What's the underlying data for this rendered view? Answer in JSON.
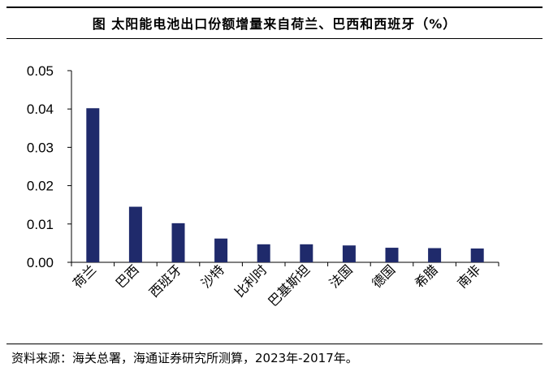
{
  "header": {
    "title": "图  太阳能电池出口份额增量来自荷兰、巴西和西班牙（%）"
  },
  "footer": {
    "source": "资料来源：海关总署，海通证券研究所测算，2023年-2017年。"
  },
  "colors": {
    "bar": "#1f2a6b",
    "axis": "#000000",
    "text": "#000000"
  },
  "chart_data": {
    "type": "bar",
    "title": "图  太阳能电池出口份额增量来自荷兰、巴西和西班牙（%）",
    "xlabel": "",
    "ylabel": "",
    "categories": [
      "荷兰",
      "巴西",
      "西班牙",
      "沙特",
      "比利时",
      "巴基斯坦",
      "法国",
      "德国",
      "希腊",
      "南非"
    ],
    "values": [
      0.0402,
      0.0145,
      0.0102,
      0.0062,
      0.0047,
      0.0047,
      0.0044,
      0.0038,
      0.0037,
      0.0036
    ],
    "ylim": [
      0,
      0.05
    ],
    "yticks": [
      "0.00",
      "0.01",
      "0.02",
      "0.03",
      "0.04",
      "0.05"
    ],
    "grid": false,
    "legend": "none"
  }
}
